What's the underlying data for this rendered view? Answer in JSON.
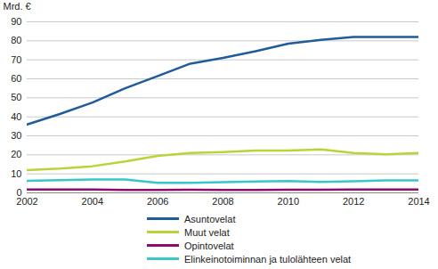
{
  "chart_data": {
    "type": "line",
    "y_label": "Mrd. €",
    "x": [
      2002,
      2003,
      2004,
      2005,
      2006,
      2007,
      2008,
      2009,
      2010,
      2011,
      2012,
      2013,
      2014
    ],
    "xlim": [
      2002,
      2014
    ],
    "xticks": [
      2002,
      2004,
      2006,
      2008,
      2010,
      2012,
      2014
    ],
    "ylim": [
      0,
      90
    ],
    "yticks": [
      0,
      10,
      20,
      30,
      40,
      50,
      60,
      70,
      80,
      90
    ],
    "grid": true,
    "legend": "bottom",
    "series": [
      {
        "name": "Asuntovelat",
        "color": "#1f5c99",
        "values": [
          36,
          41.5,
          47.5,
          55,
          61.5,
          68,
          71,
          74.5,
          78.5,
          80.5,
          82,
          82,
          82
        ]
      },
      {
        "name": "Muut velat",
        "color": "#b9d437",
        "values": [
          12,
          12.8,
          14,
          16.5,
          19.5,
          21,
          21.5,
          22.3,
          22.3,
          22.8,
          21,
          20.3,
          21
        ]
      },
      {
        "name": "Opintovelat",
        "color": "#8b0e6a",
        "values": [
          1.8,
          1.8,
          1.8,
          1.5,
          1.5,
          1.6,
          1.5,
          1.5,
          1.6,
          1.6,
          1.7,
          1.7,
          1.7
        ]
      },
      {
        "name": "Elinkeinotoiminnan ja tulolähteen velat",
        "color": "#3cc5c9",
        "values": [
          6.3,
          6.7,
          7,
          7,
          5.3,
          5.3,
          5.6,
          6,
          6.2,
          5.7,
          6.1,
          6.6,
          6.6
        ]
      }
    ]
  }
}
